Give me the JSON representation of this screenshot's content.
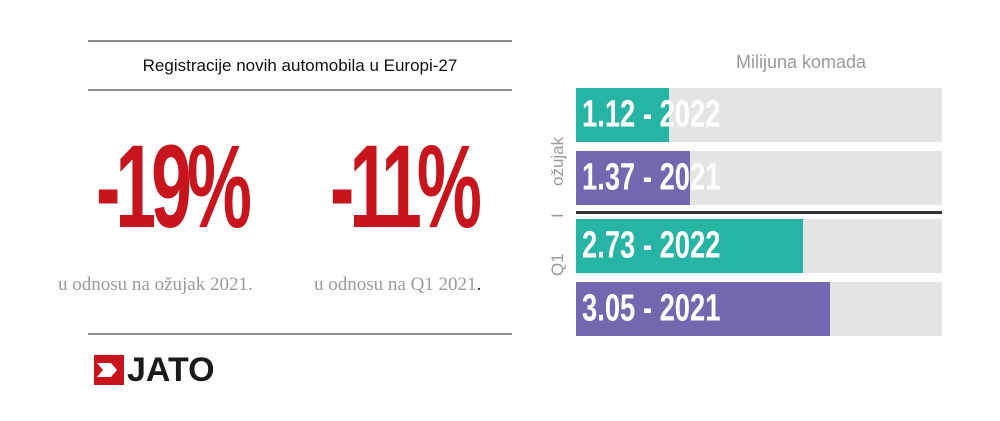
{
  "header": {
    "title": "Registracije novih automobila u Europi-27"
  },
  "stats": [
    {
      "value": "-19%",
      "note": "u odnosu na ožujak 2021."
    },
    {
      "value": "-11%",
      "note": "u odnosu na Q1 2021",
      "note_suffix": "."
    }
  ],
  "brand": {
    "name": "JATO",
    "icon": "jato-arrow-logo",
    "color": "#c8151d"
  },
  "chart_data": {
    "type": "bar",
    "orientation": "horizontal",
    "unit": "Milijuna komada",
    "groups": [
      {
        "label": "ožujak",
        "bars": [
          {
            "label": "1.12 - 2022",
            "year": "2022",
            "value": 1.12,
            "color": "#26b5a4"
          },
          {
            "label": "1.37 - 2021",
            "year": "2021",
            "value": 1.37,
            "color": "#7367b0"
          }
        ]
      },
      {
        "label": "I",
        "bars": []
      },
      {
        "label": "Q1",
        "bars": [
          {
            "label": "2.73 - 2022",
            "year": "2022",
            "value": 2.73,
            "color": "#26b5a4"
          },
          {
            "label": "3.05 - 2021",
            "year": "2021",
            "value": 3.05,
            "color": "#7367b0"
          }
        ]
      }
    ],
    "xlim": [
      0,
      4.4
    ],
    "grid": false,
    "legend": "none"
  }
}
